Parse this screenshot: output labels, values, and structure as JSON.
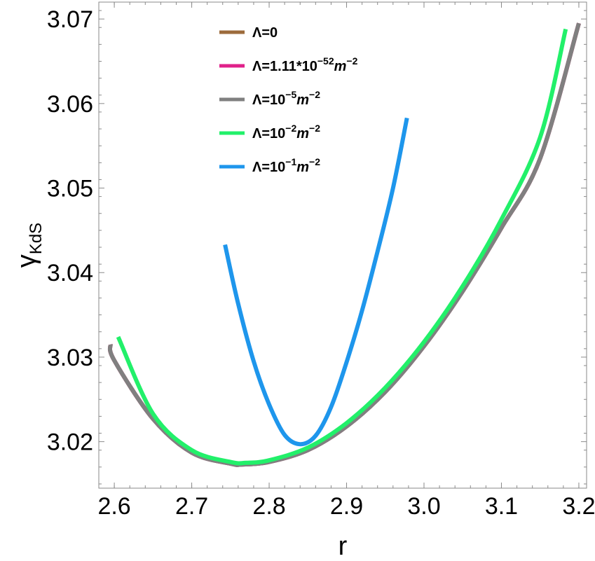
{
  "chart_data": {
    "type": "line",
    "xlabel": "r",
    "ylabel": "γ",
    "ylabel_sub": "KdS",
    "xlim": [
      2.58,
      3.21
    ],
    "ylim": [
      3.0145,
      3.072
    ],
    "x_ticks": [
      {
        "value": 2.6,
        "label": "2.6"
      },
      {
        "value": 2.7,
        "label": "2.7"
      },
      {
        "value": 2.8,
        "label": "2.8"
      },
      {
        "value": 2.9,
        "label": "2.9"
      },
      {
        "value": 3.0,
        "label": "3.0"
      },
      {
        "value": 3.1,
        "label": "3.1"
      },
      {
        "value": 3.2,
        "label": "3.2"
      }
    ],
    "y_ticks": [
      {
        "value": 3.02,
        "label": "3.02"
      },
      {
        "value": 3.03,
        "label": "3.03"
      },
      {
        "value": 3.04,
        "label": "3.04"
      },
      {
        "value": 3.05,
        "label": "3.05"
      },
      {
        "value": 3.06,
        "label": "3.06"
      },
      {
        "value": 3.07,
        "label": "3.07"
      }
    ],
    "legend_position": "top-center",
    "series": [
      {
        "name": "Λ=0",
        "legend": {
          "base": "Λ=0",
          "sup": "",
          "unit": ""
        },
        "color": "#9c6b3c",
        "x": [
          2.595,
          2.6,
          2.65,
          2.7,
          2.75,
          2.765,
          2.8,
          2.85,
          2.9,
          2.95,
          3.0,
          3.05,
          3.1,
          3.15,
          3.2
        ],
        "y": [
          3.0315,
          3.0296,
          3.0227,
          3.0187,
          3.0174,
          3.0173,
          3.0176,
          3.019,
          3.0218,
          3.0259,
          3.0313,
          3.0378,
          3.0453,
          3.0535,
          3.0695
        ]
      },
      {
        "name": "Λ=1.11*10^-52 m^-2",
        "legend": {
          "base": "Λ=1.11*10",
          "sup": "−52",
          "unit": "m"
        },
        "color": "#e0218a",
        "x": [
          2.595,
          2.6,
          2.65,
          2.7,
          2.75,
          2.765,
          2.8,
          2.85,
          2.9,
          2.95,
          3.0,
          3.05,
          3.1,
          3.15,
          3.2
        ],
        "y": [
          3.0315,
          3.0296,
          3.0227,
          3.0187,
          3.0174,
          3.0173,
          3.0176,
          3.019,
          3.0218,
          3.0259,
          3.0313,
          3.0378,
          3.0453,
          3.0535,
          3.0695
        ]
      },
      {
        "name": "Λ=10^-5 m^-2",
        "legend": {
          "base": "Λ=10",
          "sup": "−5",
          "unit": "m"
        },
        "color": "#808080",
        "x": [
          2.595,
          2.6,
          2.65,
          2.7,
          2.75,
          2.765,
          2.8,
          2.85,
          2.9,
          2.95,
          3.0,
          3.05,
          3.1,
          3.15,
          3.2
        ],
        "y": [
          3.0315,
          3.0296,
          3.0227,
          3.0187,
          3.0174,
          3.0173,
          3.0176,
          3.019,
          3.0218,
          3.0259,
          3.0313,
          3.0378,
          3.0453,
          3.0535,
          3.0695
        ]
      },
      {
        "name": "Λ=10^-2 m^-2",
        "legend": {
          "base": "Λ=10",
          "sup": "−2",
          "unit": "m"
        },
        "color": "#22f06a",
        "x": [
          2.605,
          2.65,
          2.7,
          2.75,
          2.77,
          2.8,
          2.85,
          2.9,
          2.95,
          3.0,
          3.05,
          3.1,
          3.15,
          3.183
        ],
        "y": [
          3.0324,
          3.0233,
          3.019,
          3.0176,
          3.0175,
          3.0178,
          3.0193,
          3.0222,
          3.0264,
          3.0318,
          3.0384,
          3.0463,
          3.056,
          3.0688
        ]
      },
      {
        "name": "Λ=10^-1 m^-2",
        "legend": {
          "base": "Λ=10",
          "sup": "−1",
          "unit": "m"
        },
        "color": "#1e96ec",
        "x": [
          2.743,
          2.76,
          2.78,
          2.8,
          2.82,
          2.84,
          2.86,
          2.88,
          2.9,
          2.92,
          2.94,
          2.96,
          2.978
        ],
        "y": [
          3.0433,
          3.0363,
          3.0295,
          3.0244,
          3.0208,
          3.0197,
          3.0207,
          3.0241,
          3.0294,
          3.0355,
          3.0425,
          3.05,
          3.0583
        ]
      }
    ]
  }
}
